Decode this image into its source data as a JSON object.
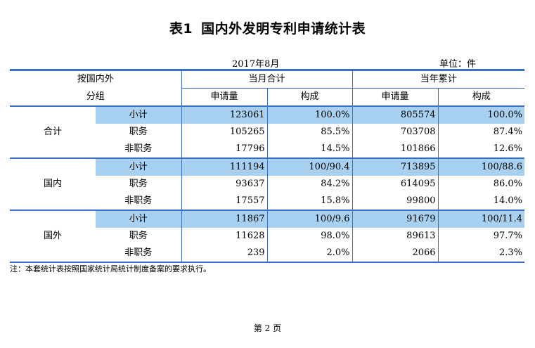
{
  "title": {
    "number": "表1",
    "text": "国内外发明专利申请统计表"
  },
  "period": "2017年8月",
  "unit": "单位：件",
  "header": {
    "category_line1": "按国内外",
    "category_line2": "分组",
    "month_total": "当月合计",
    "year_total": "当年累计",
    "applications": "申请量",
    "composition": "构成"
  },
  "groups": [
    {
      "name": "合计",
      "rows": [
        {
          "label": "小计",
          "month_count": "123061",
          "month_share": "100.0%",
          "year_count": "805574",
          "year_share": "100.0%"
        },
        {
          "label": "职务",
          "month_count": "105265",
          "month_share": "85.5%",
          "year_count": "703708",
          "year_share": "87.4%"
        },
        {
          "label": "非职务",
          "month_count": "17796",
          "month_share": "14.5%",
          "year_count": "101866",
          "year_share": "12.6%"
        }
      ]
    },
    {
      "name": "国内",
      "rows": [
        {
          "label": "小计",
          "month_count": "111194",
          "month_share": "100/90.4",
          "year_count": "713895",
          "year_share": "100/88.6"
        },
        {
          "label": "职务",
          "month_count": "93637",
          "month_share": "84.2%",
          "year_count": "614095",
          "year_share": "86.0%"
        },
        {
          "label": "非职务",
          "month_count": "17557",
          "month_share": "15.8%",
          "year_count": "99800",
          "year_share": "14.0%"
        }
      ]
    },
    {
      "name": "国外",
      "rows": [
        {
          "label": "小计",
          "month_count": "11867",
          "month_share": "100/9.6",
          "year_count": "91679",
          "year_share": "100/11.4"
        },
        {
          "label": "职务",
          "month_count": "11628",
          "month_share": "98.0%",
          "year_count": "89613",
          "year_share": "97.7%"
        },
        {
          "label": "非职务",
          "month_count": "239",
          "month_share": "2.0%",
          "year_count": "2066",
          "year_share": "2.3%"
        }
      ]
    }
  ],
  "note": "注：本套统计表按照国家统计局统计制度备案的要求执行。",
  "page_number": "第 2 页",
  "colors": {
    "rule_blue": "#3a6fc7",
    "subtotal_fill": "#a8d1f1"
  }
}
